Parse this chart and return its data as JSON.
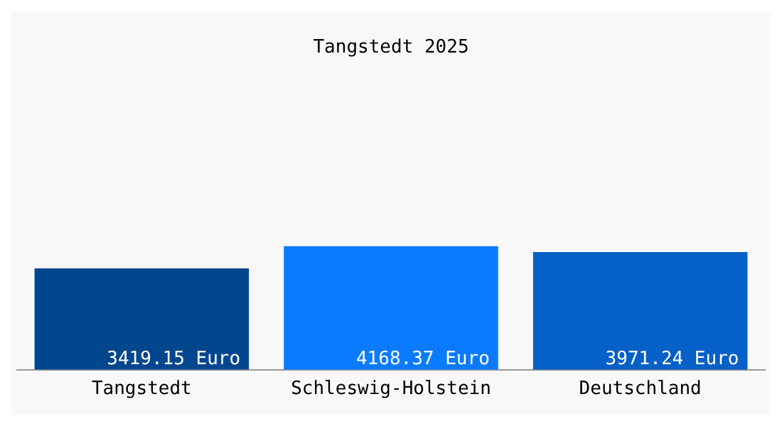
{
  "chart_data": {
    "type": "bar",
    "title": "Tangstedt 2025",
    "categories": [
      "Tangstedt",
      "Schleswig-Holstein",
      "Deutschland"
    ],
    "values": [
      3419.15,
      4168.37,
      3971.24
    ],
    "colors": [
      "#02478e",
      "#0a7bff",
      "#0560c8"
    ],
    "value_labels": [
      "3419.15 Euro",
      "4168.37 Euro",
      "3971.24 Euro"
    ],
    "grid": false,
    "legend": false
  }
}
